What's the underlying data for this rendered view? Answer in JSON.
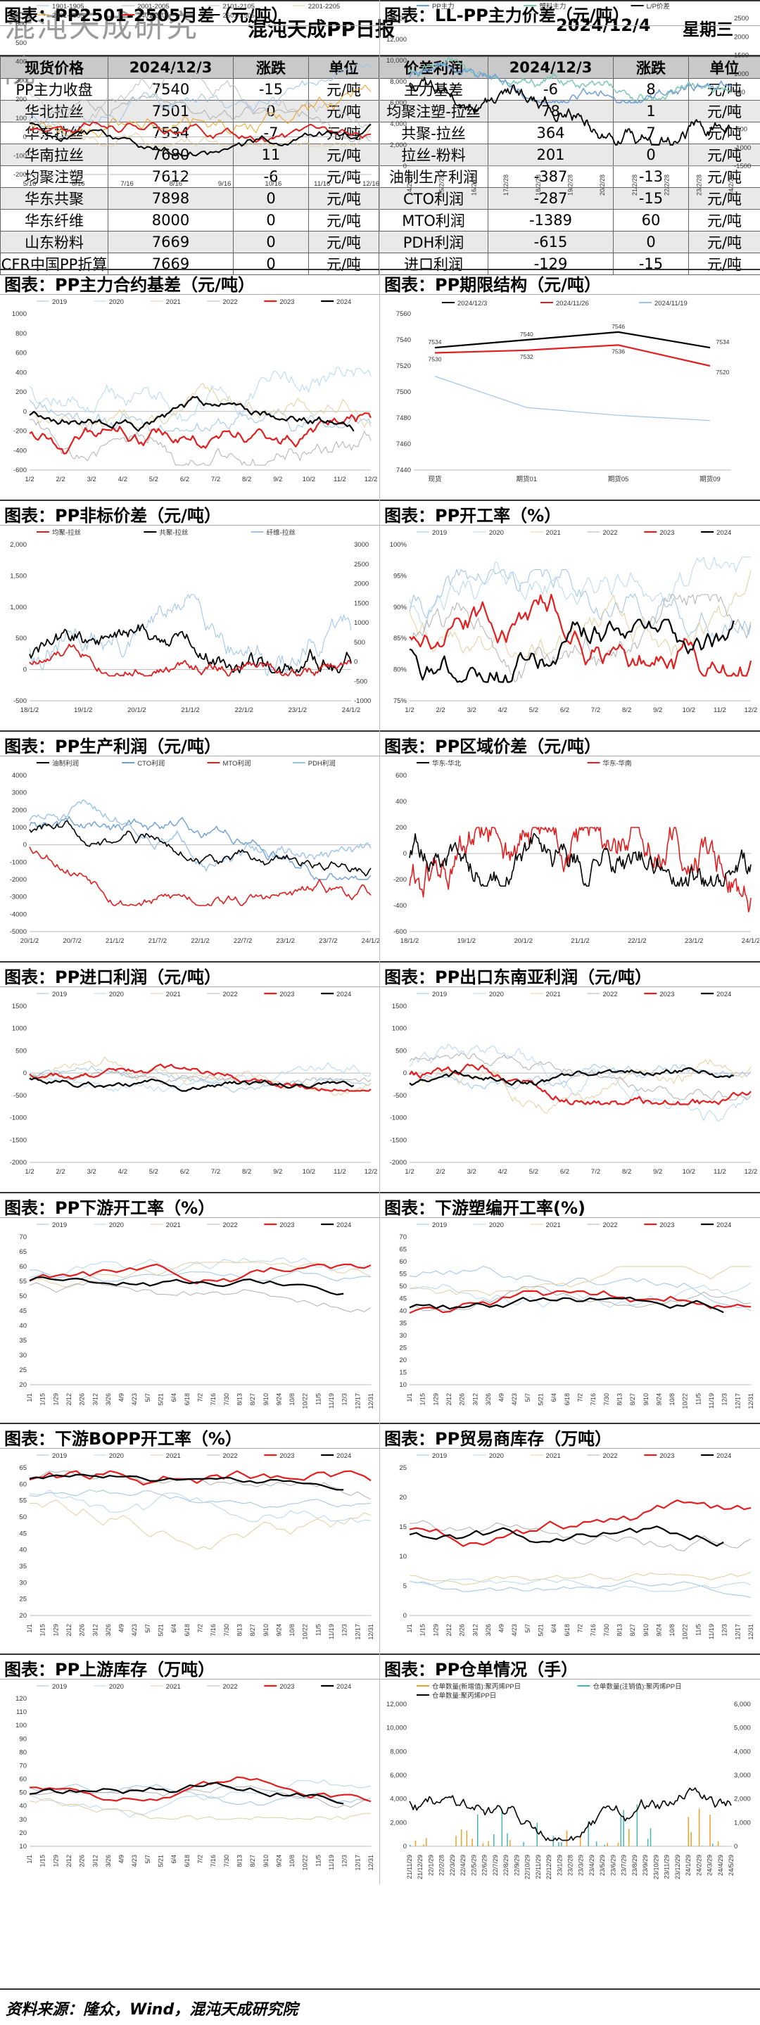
{
  "header": {
    "logo_text": "混沌天成研究院",
    "title": "混沌天成PP日报",
    "date": "2024/12/4",
    "weekday": "星期三"
  },
  "prices_table": {
    "headers": [
      "现货价格",
      "2024/12/3",
      "涨跌",
      "单位",
      "价差利润",
      "2024/12/3",
      "涨跌",
      "单位"
    ],
    "rows": [
      [
        "PP主力收盘",
        "7540",
        "-15",
        "元/吨",
        "主力基差",
        "-6",
        "8",
        "元/吨"
      ],
      [
        "华北拉丝",
        "7501",
        "0",
        "元/吨",
        "均聚注塑-拉丝",
        "78",
        "1",
        "元/吨"
      ],
      [
        "华东拉丝",
        "7534",
        "-7",
        "元/吨",
        "共聚-拉丝",
        "364",
        "7",
        "元/吨"
      ],
      [
        "华南拉丝",
        "7680",
        "11",
        "元/吨",
        "拉丝-粉料",
        "201",
        "0",
        "元/吨"
      ],
      [
        "均聚注塑",
        "7612",
        "-6",
        "元/吨",
        "油制生产利润",
        "-387",
        "-13",
        "元/吨"
      ],
      [
        "华东共聚",
        "7898",
        "0",
        "元/吨",
        "CTO利润",
        "-287",
        "-15",
        "元/吨"
      ],
      [
        "华东纤维",
        "8000",
        "0",
        "元/吨",
        "MTO利润",
        "-1389",
        "60",
        "元/吨"
      ],
      [
        "山东粉料",
        "7669",
        "0",
        "元/吨",
        "PDH利润",
        "-615",
        "0",
        "元/吨"
      ],
      [
        "CFR中国PP折算",
        "7669",
        "0",
        "元/吨",
        "进口利润",
        "-129",
        "-15",
        "元/吨"
      ]
    ]
  },
  "colors": {
    "2019": "#9dc3e6",
    "2020": "#b7d7f0",
    "2021": "#e2cfa0",
    "2022": "#b0b0b0",
    "2023": "#e02020",
    "2024": "#000000",
    "blue": "#6f9fd8",
    "orange": "#f0a020",
    "teal": "#45b5b5"
  },
  "footer": "资料来源：隆众，Wind，混沌天成研究院",
  "chart_data": [
    {
      "id": "c1",
      "type": "line",
      "title": "图表：PP主力合约基差（元/吨）",
      "legend": [
        "2019",
        "2020",
        "2021",
        "2022",
        "2023",
        "2024"
      ],
      "x_ticks": [
        "1/2",
        "2/2",
        "3/2",
        "4/2",
        "5/2",
        "6/2",
        "7/2",
        "8/2",
        "9/2",
        "10/2",
        "11/2",
        "12/2"
      ],
      "ylim": [
        -600,
        1000
      ],
      "y_ticks": [
        "1000",
        "800",
        "600",
        "400",
        "200",
        "0",
        "-200",
        "-400",
        "-600"
      ]
    },
    {
      "id": "c2",
      "type": "line",
      "title": "图表：PP期限结构（元/吨）",
      "categories": [
        "现货",
        "期货01",
        "期货05",
        "期货09"
      ],
      "series": [
        {
          "name": "2024/12/3",
          "values": [
            7534,
            7540,
            7546,
            7534
          ]
        },
        {
          "name": "2024/11/26",
          "values": [
            7530,
            7532,
            7536,
            7520
          ]
        },
        {
          "name": "2024/11/19",
          "values": [
            7512,
            7488,
            7482,
            7478
          ]
        }
      ],
      "data_labels": [
        "7534",
        "7540",
        "7546",
        "7534",
        "7530",
        "7532",
        "7536",
        "7520"
      ],
      "ylim": [
        7440,
        7560
      ],
      "y_ticks": [
        "7560",
        "7540",
        "7520",
        "7500",
        "7480",
        "7460",
        "7440"
      ]
    },
    {
      "id": "c3",
      "type": "line",
      "title": "图表：PP非标价差（元/吨）",
      "legend": [
        "均聚-拉丝",
        "共聚-拉丝",
        "纤维-拉丝"
      ],
      "x_ticks": [
        "18/1/2",
        "19/1/2",
        "20/1/2",
        "21/1/2",
        "22/1/2",
        "23/1/2",
        "24/1/2"
      ],
      "ylim": [
        -500,
        2000
      ],
      "y_ticks": [
        "2,000",
        "1,500",
        "1,000",
        "500",
        "0",
        "-500"
      ],
      "y2_ticks": [
        "3000",
        "2500",
        "2000",
        "1500",
        "1000",
        "500",
        "0",
        "-500",
        "-1000"
      ]
    },
    {
      "id": "c4",
      "type": "line",
      "title": "图表：PP开工率（%）",
      "legend": [
        "2019",
        "2020",
        "2021",
        "2022",
        "2023",
        "2024"
      ],
      "x_ticks": [
        "1/2",
        "2/2",
        "3/2",
        "4/2",
        "5/2",
        "6/2",
        "7/2",
        "8/2",
        "9/2",
        "10/2",
        "11/2",
        "12/2"
      ],
      "ylim": [
        75,
        100
      ],
      "y_ticks": [
        "100%",
        "95%",
        "90%",
        "85%",
        "80%",
        "75%"
      ]
    },
    {
      "id": "c5",
      "type": "line",
      "title": "图表：PP生产利润（元/吨）",
      "legend": [
        "油制利润",
        "CTO利润",
        "MTO利润",
        "PDH利润"
      ],
      "x_ticks": [
        "20/1/2",
        "20/7/2",
        "21/1/2",
        "21/7/2",
        "22/1/2",
        "22/7/2",
        "23/1/2",
        "23/7/2",
        "24/1/2"
      ],
      "ylim": [
        -5000,
        4000
      ],
      "y_ticks": [
        "4000",
        "3000",
        "2000",
        "1000",
        "0",
        "-1000",
        "-2000",
        "-3000",
        "-4000",
        "-5000"
      ]
    },
    {
      "id": "c6",
      "type": "line",
      "title": "图表：PP区域价差（元/吨）",
      "legend": [
        "华东-华北",
        "华东-华南"
      ],
      "x_ticks": [
        "18/1/2",
        "19/1/2",
        "20/1/2",
        "21/1/2",
        "22/1/2",
        "23/1/2",
        "24/1/2"
      ],
      "ylim": [
        -600,
        600
      ],
      "y_ticks": [
        "600",
        "400",
        "200",
        "0",
        "-200",
        "-400",
        "-600"
      ]
    },
    {
      "id": "c7",
      "type": "line",
      "title": "图表：PP进口利润（元/吨）",
      "legend": [
        "2019",
        "2020",
        "2021",
        "2022",
        "2023",
        "2024"
      ],
      "x_ticks": [
        "1/2",
        "2/2",
        "3/2",
        "4/2",
        "5/2",
        "6/2",
        "7/2",
        "8/2",
        "9/2",
        "10/2",
        "11/2",
        "12/2"
      ],
      "ylim": [
        -2000,
        1500
      ],
      "y_ticks": [
        "1500",
        "1000",
        "500",
        "0",
        "-500",
        "-1000",
        "-1500",
        "-2000"
      ]
    },
    {
      "id": "c8",
      "type": "line",
      "title": "图表：PP出口东南亚利润（元/吨）",
      "legend": [
        "2019",
        "2020",
        "2021",
        "2022",
        "2023",
        "2024"
      ],
      "x_ticks": [
        "1/2",
        "2/2",
        "3/2",
        "4/2",
        "5/2",
        "6/2",
        "7/2",
        "8/2",
        "9/2",
        "10/2",
        "11/2",
        "12/2"
      ],
      "ylim": [
        -2000,
        1500
      ],
      "y_ticks": [
        "1500",
        "1000",
        "500",
        "0",
        "-500",
        "-1000",
        "-1500",
        "-2000"
      ]
    },
    {
      "id": "c9",
      "type": "line",
      "title": "图表：PP下游开工率（%）",
      "legend": [
        "2019",
        "2020",
        "2021",
        "2022",
        "2023",
        "2024"
      ],
      "x_ticks": [
        "1/1",
        "1/15",
        "1/29",
        "2/12",
        "2/26",
        "3/12",
        "3/26",
        "4/9",
        "4/23",
        "5/7",
        "5/21",
        "6/4",
        "6/18",
        "7/2",
        "7/16",
        "7/30",
        "8/13",
        "8/27",
        "9/10",
        "9/24",
        "10/8",
        "10/22",
        "11/5",
        "11/19",
        "12/3",
        "12/17",
        "12/31"
      ],
      "ylim": [
        0,
        70
      ],
      "y_ticks": [
        "70",
        "65",
        "60",
        "55",
        "50",
        "45",
        "40",
        "35",
        "30",
        "25",
        "20"
      ]
    },
    {
      "id": "c10",
      "type": "line",
      "title": "图表：下游塑编开工率(%)",
      "legend": [
        "2019",
        "2020",
        "2021",
        "2022",
        "2023",
        "2024"
      ],
      "x_ticks": [
        "1/1",
        "1/15",
        "1/29",
        "2/12",
        "2/26",
        "3/12",
        "3/26",
        "4/9",
        "4/23",
        "5/7",
        "5/21",
        "6/4",
        "6/18",
        "7/2",
        "7/16",
        "7/30",
        "8/13",
        "8/27",
        "9/10",
        "9/24",
        "10/8",
        "10/22",
        "11/5",
        "11/19",
        "12/3",
        "12/17",
        "12/31"
      ],
      "ylim": [
        10,
        70
      ],
      "y_ticks": [
        "70",
        "65",
        "60",
        "55",
        "50",
        "45",
        "40",
        "35",
        "30",
        "25",
        "20",
        "15",
        "10"
      ]
    },
    {
      "id": "c11",
      "type": "line",
      "title": "图表：下游BOPP开工率（%）",
      "legend": [
        "2019",
        "2020",
        "2021",
        "2022",
        "2023",
        "2024"
      ],
      "x_ticks": [
        "1/1",
        "1/15",
        "1/29",
        "2/12",
        "2/26",
        "3/12",
        "3/26",
        "4/9",
        "4/23",
        "5/7",
        "5/21",
        "6/4",
        "6/18",
        "7/2",
        "7/16",
        "7/30",
        "8/13",
        "8/27",
        "9/10",
        "9/24",
        "10/8",
        "10/22",
        "11/5",
        "11/19",
        "12/3",
        "12/17",
        "12/31"
      ],
      "ylim": [
        20,
        65
      ],
      "y_ticks": [
        "65",
        "60",
        "55",
        "50",
        "45",
        "40",
        "35",
        "30",
        "25",
        "20"
      ]
    },
    {
      "id": "c12",
      "type": "line",
      "title": "图表：PP贸易商库存（万吨）",
      "legend": [
        "2019",
        "2020",
        "2021",
        "2022",
        "2023",
        "2024"
      ],
      "x_ticks": [
        "1/1",
        "1/15",
        "1/29",
        "2/12",
        "2/26",
        "3/12",
        "3/26",
        "4/9",
        "4/23",
        "5/7",
        "5/21",
        "6/4",
        "6/18",
        "7/2",
        "7/16",
        "7/30",
        "8/13",
        "8/27",
        "9/10",
        "9/24",
        "10/8",
        "10/22",
        "11/5",
        "11/19",
        "12/3",
        "12/17",
        "12/31"
      ],
      "ylim": [
        0,
        25
      ],
      "y_ticks": [
        "25",
        "20",
        "15",
        "10",
        "5",
        "0"
      ]
    },
    {
      "id": "c13",
      "type": "line",
      "title": "图表：PP上游库存（万吨）",
      "legend": [
        "2019",
        "2020",
        "2021",
        "2022",
        "2023",
        "2024"
      ],
      "x_ticks": [
        "1/1",
        "1/15",
        "1/29",
        "2/12",
        "2/26",
        "3/12",
        "3/26",
        "4/9",
        "4/23",
        "5/7",
        "5/21",
        "6/4",
        "6/18",
        "7/2",
        "7/16",
        "7/30",
        "8/13",
        "8/27",
        "9/10",
        "9/24",
        "10/8",
        "10/22",
        "11/5",
        "11/19",
        "12/3",
        "12/17",
        "12/31"
      ],
      "ylim": [
        10,
        120
      ],
      "y_ticks": [
        "120",
        "110",
        "100",
        "90",
        "80",
        "70",
        "60",
        "50",
        "40",
        "30",
        "20",
        "10"
      ]
    },
    {
      "id": "c14",
      "type": "bar+line",
      "title": "图表：PP仓单情况（手）",
      "legend": [
        "仓单数量(新增值):聚丙烯PP日",
        "仓单数量(注销值):聚丙烯PP日",
        "仓单数量:聚丙烯PP日"
      ],
      "x_ticks": [
        "21/11/29",
        "21/12/29",
        "22/1/29",
        "22/2/28",
        "22/3/29",
        "22/4/29",
        "22/5/29",
        "22/6/29",
        "22/7/29",
        "22/8/29",
        "22/9/29",
        "22/10/29",
        "22/11/29",
        "22/12/29",
        "23/1/29",
        "23/2/28",
        "23/3/29",
        "23/4/29",
        "23/5/29",
        "23/6/29",
        "23/7/29",
        "23/8/29",
        "23/9/29",
        "23/10/29",
        "23/11/29",
        "23/12/29",
        "24/1/29",
        "24/2/29",
        "24/3/29",
        "24/4/29",
        "24/5/29"
      ],
      "ylim": [
        0,
        12000
      ],
      "y_ticks": [
        "12,000",
        "10,000",
        "8,000",
        "6,000",
        "4,000",
        "2,000",
        "0"
      ],
      "y2_ticks": [
        "6,000",
        "5,000",
        "4,000",
        "3,000",
        "2,000",
        "1,000",
        "0"
      ]
    },
    {
      "id": "c15",
      "type": "line",
      "title": "图表：PP2501-2505月差（元/吨）",
      "legend": [
        "1901-1905",
        "2001-2005",
        "2101-2105",
        "2201-2205",
        "2301-2305",
        "2401-2405",
        "2501-2505"
      ],
      "x_ticks": [
        "5/16",
        "6/16",
        "7/16",
        "8/16",
        "9/16",
        "10/16",
        "11/16",
        "12/16"
      ],
      "ylim": [
        -200,
        600
      ],
      "y_ticks": [
        "600",
        "500",
        "400",
        "300",
        "200",
        "100",
        "0",
        "-100",
        "-200"
      ]
    },
    {
      "id": "c16",
      "type": "line",
      "title": "图表：LL-PP主力价差（元/吨）",
      "legend": [
        "PP主力",
        "塑料主力",
        "L/P价差"
      ],
      "x_ticks": [
        "14/2/28",
        "15/2/28",
        "16/2/28",
        "17/2/28",
        "18/2/28",
        "19/2/28",
        "20/2/28",
        "21/2/28",
        "22/2/28",
        "23/2/28",
        "24/2/28"
      ],
      "ylim": [
        0,
        14000
      ],
      "y_ticks": [
        "14,000",
        "12,000",
        "10,000",
        "8,000",
        "6,000",
        "4,000",
        "2,000",
        "0"
      ],
      "y2_ticks": [
        "2500",
        "2000",
        "1500",
        "1000",
        "500",
        "0",
        "-500",
        "-1000",
        "-1500"
      ]
    }
  ]
}
